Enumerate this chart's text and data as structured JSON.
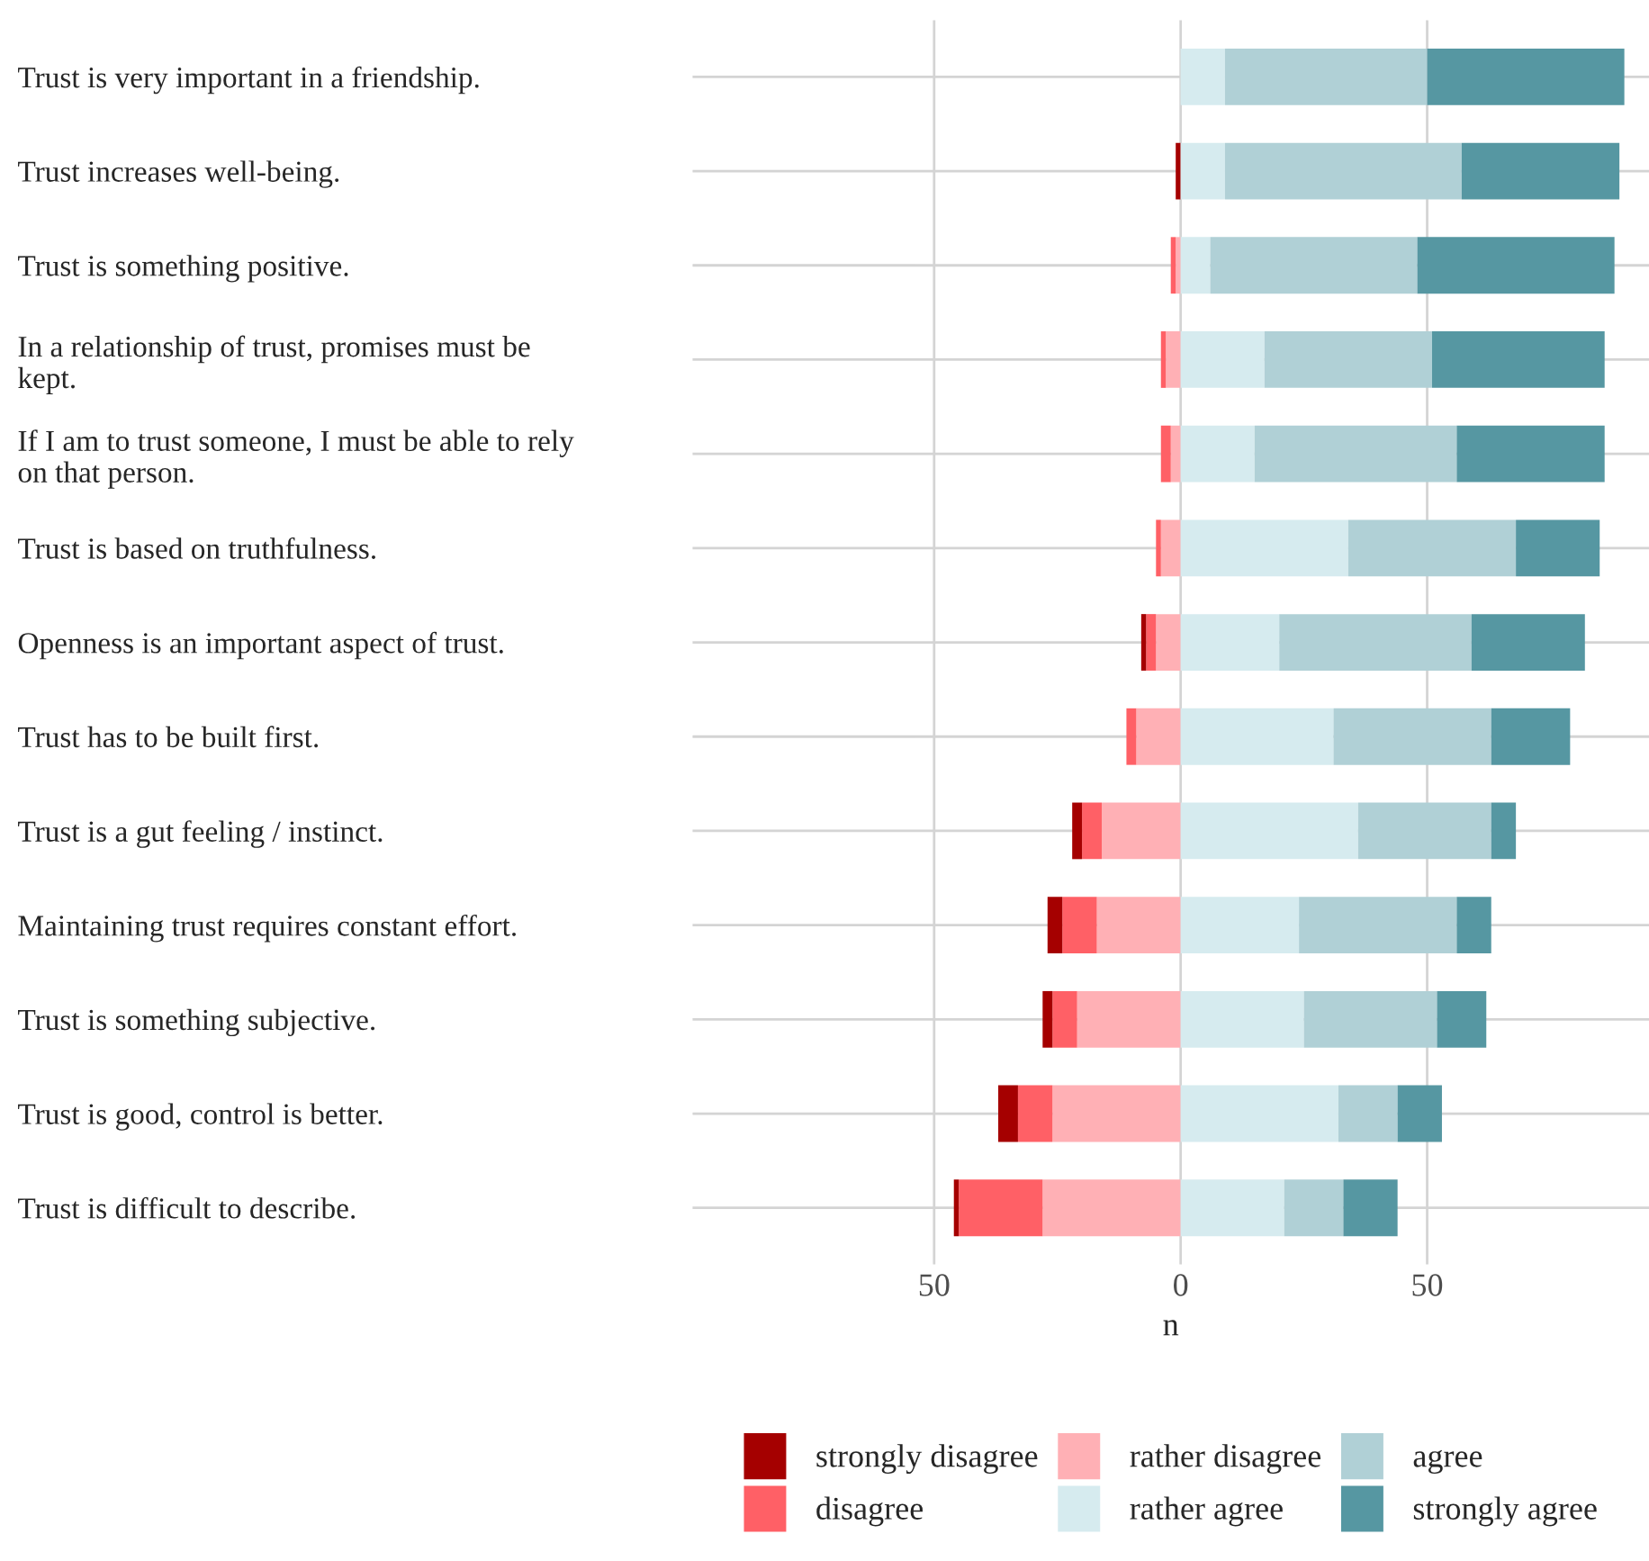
{
  "chart_data": {
    "type": "bar",
    "orientation": "horizontal",
    "stacked": true,
    "categories": [
      "Trust is very important in a friendship.",
      "Trust increases well-being.",
      "Trust is something positive.",
      "In a relationship of trust, promises must be\nkept.",
      "If I am to trust someone, I must be able to rely\non that person.",
      "Trust is based on truthfulness.",
      "Openness is an important aspect of trust.",
      "Trust has to be built first.",
      "Trust is a gut feeling / instinct.",
      "Maintaining trust requires constant effort.",
      "Trust is something subjective.",
      "Trust is good, control is better.",
      "Trust is difficult to describe."
    ],
    "series": [
      {
        "name": "rather disagree",
        "color": "#ffb0b5",
        "values": [
          0,
          0,
          -1,
          -3,
          -2,
          -4,
          -5,
          -9,
          -16,
          -17,
          -21,
          -26,
          -28
        ]
      },
      {
        "name": "disagree",
        "color": "#ff6066",
        "values": [
          0,
          0,
          -1,
          -1,
          -2,
          -1,
          -2,
          -2,
          -4,
          -7,
          -5,
          -7,
          -17
        ]
      },
      {
        "name": "strongly disagree",
        "color": "#a50000",
        "values": [
          0,
          -1,
          0,
          0,
          0,
          0,
          -1,
          0,
          -2,
          -3,
          -2,
          -4,
          -1
        ]
      },
      {
        "name": "rather agree",
        "color": "#d6ebef",
        "values": [
          9,
          9,
          6,
          17,
          15,
          34,
          20,
          31,
          36,
          24,
          25,
          32,
          21
        ]
      },
      {
        "name": "agree",
        "color": "#b0d0d6",
        "values": [
          41,
          48,
          42,
          34,
          41,
          34,
          39,
          32,
          27,
          32,
          27,
          12,
          12
        ]
      },
      {
        "name": "strongly agree",
        "color": "#5697a2",
        "values": [
          40,
          32,
          40,
          35,
          30,
          17,
          23,
          16,
          5,
          7,
          10,
          9,
          11
        ]
      }
    ],
    "xlabel": "n",
    "xlim": [
      -99,
      95
    ],
    "xticks": [
      {
        "value": -50,
        "label": "50"
      },
      0,
      50
    ],
    "grid": true,
    "legend": "bottom"
  }
}
